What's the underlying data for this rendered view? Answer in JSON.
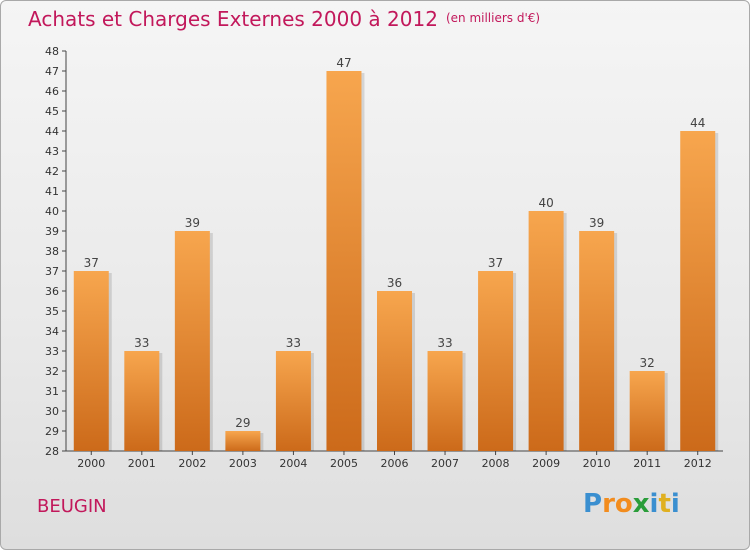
{
  "title": "Achats et Charges Externes 2000 à 2012",
  "unit": "(en milliers d'€)",
  "town": "BEUGIN",
  "logo": {
    "letters": [
      "P",
      "r",
      "o",
      "x",
      "i",
      "t",
      "i"
    ],
    "colors": [
      "#3a8fd0",
      "#f28c1e",
      "#f28c1e",
      "#2a9d3a",
      "#3a8fd0",
      "#e0b020",
      "#3a8fd0"
    ]
  },
  "colors": {
    "bar_light": "#f7a64e",
    "bar_dark": "#cc6a1a",
    "title": "#c2185b"
  },
  "chart_data": {
    "type": "bar",
    "title": "Achats et Charges Externes 2000 à 2012",
    "categories": [
      "2000",
      "2001",
      "2002",
      "2003",
      "2004",
      "2005",
      "2006",
      "2007",
      "2008",
      "2009",
      "2010",
      "2011",
      "2012"
    ],
    "values": [
      37,
      33,
      39,
      29,
      33,
      47,
      36,
      33,
      37,
      40,
      39,
      32,
      44
    ],
    "ylim": [
      28,
      48
    ],
    "yticks": [
      28,
      29,
      30,
      31,
      32,
      33,
      34,
      35,
      36,
      37,
      38,
      39,
      40,
      41,
      42,
      43,
      44,
      45,
      46,
      47,
      48
    ],
    "grid": false,
    "data_labels": true
  }
}
